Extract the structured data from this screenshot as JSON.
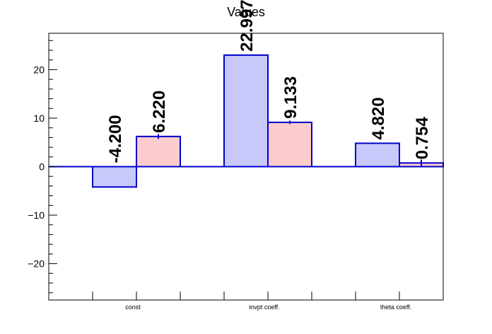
{
  "chart_data": {
    "type": "bar",
    "title": "Values",
    "categories": [
      "const",
      "invpt coeff.",
      "theta coeff."
    ],
    "series": [
      {
        "values": [
          -4.2,
          22.997,
          4.82
        ],
        "labels": [
          "-4.200",
          "22.997",
          "4.820"
        ],
        "fill": "#c8c8fa",
        "stroke": "#0000cc"
      },
      {
        "values": [
          6.22,
          9.133,
          0.754
        ],
        "labels": [
          "6.220",
          "9.133",
          "0.754"
        ],
        "errors": [
          0.5,
          0.35,
          0.7
        ],
        "fill": "#fccccc",
        "stroke": "#0000cc"
      }
    ],
    "yticks": [
      -20,
      -10,
      0,
      10,
      20
    ],
    "ytick_labels": [
      "−20",
      "−10",
      "0",
      "10",
      "20"
    ],
    "ylim": [
      -27.5,
      27.5
    ],
    "grid": false
  }
}
